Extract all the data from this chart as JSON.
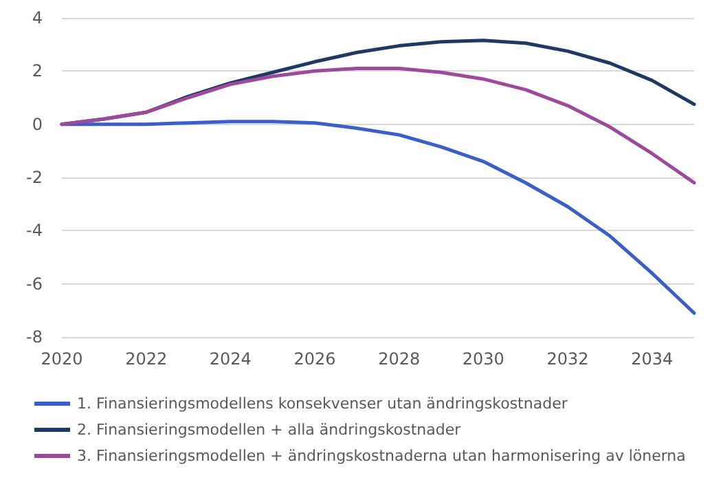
{
  "chart_data": {
    "type": "line",
    "x": [
      2020,
      2021,
      2022,
      2023,
      2024,
      2025,
      2026,
      2027,
      2028,
      2029,
      2030,
      2031,
      2032,
      2033,
      2034,
      2035
    ],
    "series": [
      {
        "name": "1. Finansieringsmodellens konsekvenser utan ändringskostnader",
        "color": "#3a5fc8",
        "values": [
          0,
          0,
          0,
          0.05,
          0.1,
          0.1,
          0.05,
          -0.15,
          -0.4,
          -0.85,
          -1.4,
          -2.2,
          -3.1,
          -4.2,
          -5.6,
          -7.1
        ]
      },
      {
        "name": "2. Finansieringsmodellen + alla ändringskostnader",
        "color": "#1f3864",
        "values": [
          0,
          0.2,
          0.45,
          1.05,
          1.55,
          1.95,
          2.35,
          2.7,
          2.95,
          3.1,
          3.15,
          3.05,
          2.75,
          2.3,
          1.65,
          0.75
        ]
      },
      {
        "name": "3. Finansieringsmodellen + ändringskostnaderna utan harmonisering av lönerna",
        "color": "#9e4a9c",
        "values": [
          0,
          0.2,
          0.45,
          1.0,
          1.5,
          1.8,
          2.0,
          2.1,
          2.1,
          1.95,
          1.7,
          1.3,
          0.7,
          -0.1,
          -1.1,
          -2.2
        ]
      }
    ],
    "xlim": [
      2020,
      2035
    ],
    "xticks": [
      2020,
      2022,
      2024,
      2026,
      2028,
      2030,
      2032,
      2034
    ],
    "ylim": [
      -8,
      4
    ],
    "yticks": [
      -8,
      -6,
      -4,
      -2,
      0,
      2,
      4
    ],
    "grid": "y",
    "legend": "bottom",
    "marker": "none",
    "line_style": "solid"
  }
}
